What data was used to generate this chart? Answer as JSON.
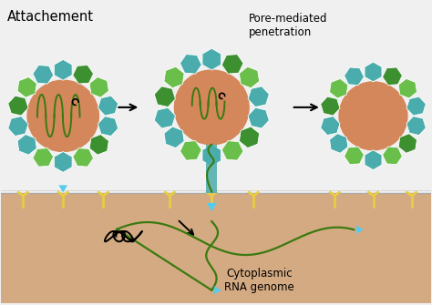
{
  "title": "Attachement",
  "label_pore": "Pore-mediated\npenetration",
  "label_cytoplasm": "Cytoplasmic\nRNA genome",
  "bg_color": "#f0f0f0",
  "surface_color": "#d4aa82",
  "surface_line_color": "#b0b0b0",
  "virus_body_color": "#d4875a",
  "outer_capsid_teal": "#4aacac",
  "outer_capsid_green_light": "#6abf4a",
  "outer_capsid_green_dark": "#3d9030",
  "rna_color": "#3a7a10",
  "receptor_color": "#e8cc44",
  "arrow_color": "#222222",
  "cyan_arrow": "#55ccee",
  "fig_width": 4.74,
  "fig_height": 3.35,
  "dpi": 100
}
